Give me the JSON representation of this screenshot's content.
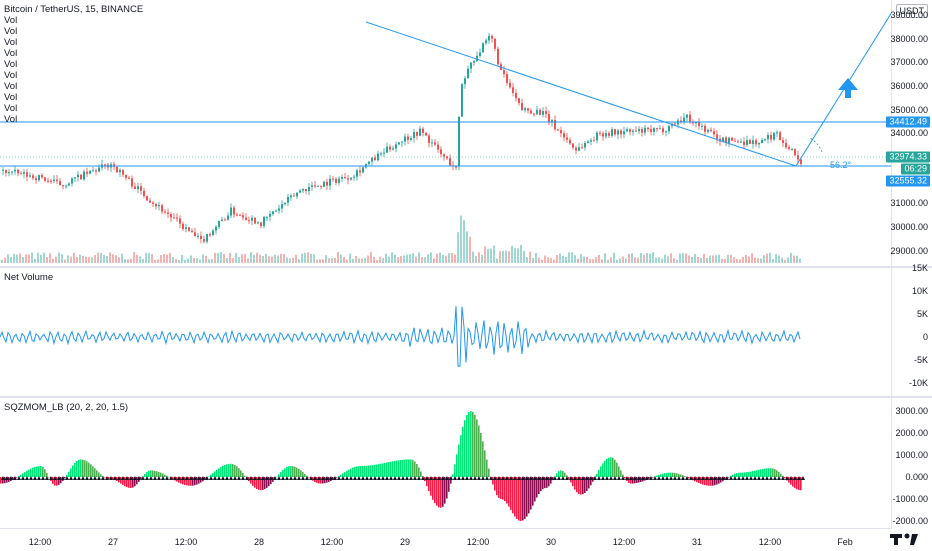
{
  "header": {
    "symbol_title": "Bitcoin / TetherUS, 15, BINANCE",
    "currency": "USDT",
    "vol_labels": [
      "Vol",
      "Vol",
      "Vol",
      "Vol",
      "Vol",
      "Vol",
      "Vol",
      "Vol",
      "Vol",
      "Vol"
    ]
  },
  "price_axis": {
    "ticks": [
      "39000.00",
      "38000.00",
      "37000.00",
      "36000.00",
      "35000.00",
      "34000.00",
      "31000.00",
      "30000.00",
      "29000.00"
    ]
  },
  "price_tags": {
    "resistance": "34412.49",
    "last": "32974.33",
    "countdown": "06:29",
    "support": "32555.32"
  },
  "drawing": {
    "angle_label": "56.2°"
  },
  "net_volume": {
    "title": "Net Volume",
    "ticks": [
      "15K",
      "10K",
      "5K",
      "0",
      "-5K",
      "-10K"
    ]
  },
  "sqzmom": {
    "title": "SQZMOM_LB (20, 2, 20, 1.5)",
    "ticks": [
      "3000.00",
      "2000.00",
      "1000.00",
      "0.000",
      "-1000.00",
      "-2000.00"
    ]
  },
  "time_axis": {
    "labels": [
      "12:00",
      "27",
      "12:00",
      "28",
      "12:00",
      "29",
      "12:00",
      "30",
      "12:00",
      "31",
      "12:00",
      "Feb"
    ]
  },
  "colors": {
    "up": "#26a69a",
    "down": "#ef5350",
    "line": "#2196f3",
    "sqz_up_strong": "#00e676",
    "sqz_up_weak": "#4caf50",
    "sqz_down_strong": "#ff1744",
    "sqz_down_weak": "#880e4f"
  }
}
